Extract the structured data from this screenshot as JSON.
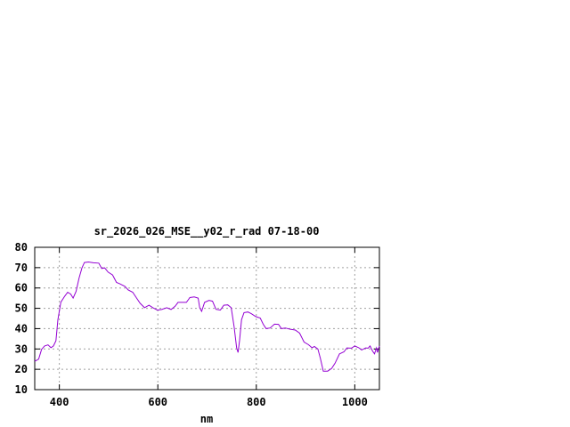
{
  "chart_data": {
    "type": "line",
    "title": "sr_2026_026_MSE__y02_r_rad 07-18-00",
    "xlabel": "nm",
    "ylabel": "",
    "xlim": [
      350,
      1050
    ],
    "ylim": [
      10,
      80
    ],
    "xticks": [
      400,
      600,
      800,
      1000
    ],
    "yticks": [
      10,
      20,
      30,
      40,
      50,
      60,
      70,
      80
    ],
    "grid": true,
    "series_color": "#9400d3",
    "series": [
      {
        "x": [
          350,
          358,
          364,
          370,
          377,
          383,
          388,
          393,
          397,
          403,
          411,
          417,
          423,
          428,
          434,
          440,
          446,
          451,
          459,
          469,
          480,
          486,
          492,
          499,
          508,
          516,
          523,
          533,
          540,
          549,
          557,
          564,
          573,
          582,
          590,
          599,
          608,
          618,
          627,
          635,
          641,
          650,
          658,
          665,
          674,
          682,
          685,
          689,
          695,
          704,
          711,
          718,
          727,
          734,
          742,
          749,
          755,
          760,
          763,
          766,
          770,
          775,
          783,
          790,
          799,
          808,
          814,
          820,
          828,
          837,
          845,
          851,
          859,
          869,
          879,
          888,
          897,
          906,
          913,
          918,
          925,
          930,
          936,
          945,
          953,
          960,
          969,
          978,
          984,
          993,
          1000,
          1008,
          1014,
          1022,
          1027,
          1031,
          1036,
          1040,
          1044,
          1046,
          1050
        ],
        "y": [
          23.9,
          25,
          29.8,
          31.5,
          32,
          30.6,
          31.5,
          34,
          44.4,
          53,
          56,
          57.9,
          57,
          55,
          58.3,
          64.9,
          70,
          72.5,
          72.8,
          72.4,
          72.2,
          69.6,
          69.9,
          67.8,
          66.4,
          62.7,
          62,
          60.8,
          59,
          57.9,
          55,
          52.5,
          50.3,
          51.5,
          50.3,
          49.1,
          49.4,
          50.3,
          49.4,
          51,
          52.9,
          52.9,
          52.9,
          55.3,
          55.6,
          55,
          50.3,
          48.5,
          52.9,
          53.9,
          53.5,
          49.5,
          49.1,
          51.5,
          51.7,
          50.3,
          40.8,
          30.5,
          28.3,
          34.2,
          44.4,
          47.9,
          48.2,
          47.3,
          45.9,
          45.2,
          42.2,
          40,
          40.3,
          42.2,
          42.1,
          40,
          40.3,
          39.7,
          39.3,
          37.8,
          33.4,
          32.1,
          30.6,
          31.2,
          30,
          25.4,
          19.1,
          19.1,
          20.4,
          23,
          27.6,
          28.6,
          30.5,
          30.4,
          31.5,
          30.6,
          29.5,
          30.5,
          30.4,
          31.5,
          29,
          27.6,
          30.5,
          28.3,
          31.5
        ]
      }
    ]
  }
}
